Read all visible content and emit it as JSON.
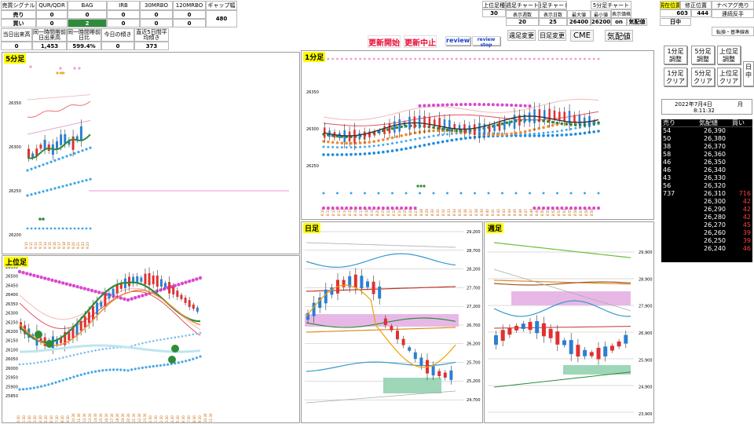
{
  "signals": {
    "headers": [
      "売買シグナル",
      "QUR/QDR",
      "BAG",
      "IRB",
      "30MRBO",
      "120MRBO",
      "ギャップ幅"
    ],
    "row_sell": {
      "label": "売り",
      "values": [
        "0",
        "0",
        "0",
        "0",
        "0"
      ]
    },
    "row_buy": {
      "label": "買い",
      "values": [
        "0",
        "2",
        "0",
        "0",
        "0"
      ]
    },
    "gap_value": "480"
  },
  "volume_stats": {
    "headers": [
      "当日出来高",
      "同一時間帯前日出来高",
      "同一時間帯前日比",
      "今日の傾き",
      "直近5日間平均傾き"
    ],
    "values": [
      "0",
      "1,453",
      "599.4%",
      "0",
      "373"
    ]
  },
  "controls": {
    "update_start": "更新開始",
    "update_stop": "更新中止",
    "review": "review",
    "review_stop": "review stop",
    "period_change": "週足変更",
    "daily_change": "日足変更",
    "cme": "CME",
    "kehai": "気配値"
  },
  "settings": {
    "h1": [
      "上位足種",
      "週足チャート",
      "日足チャート"
    ],
    "v1": [
      "30",
      "20",
      "25"
    ],
    "h2": [
      "表示週数",
      "表示日数",
      "最大値",
      "最小値"
    ],
    "v2": [
      "26400",
      "26200",
      "on"
    ],
    "h3": [
      "5分足チャート",
      "表示価格"
    ],
    "v3": [
      "気配値"
    ],
    "h4": [
      "現在位置",
      "修正位置",
      "ナベアグ売り"
    ],
    "v4": [
      "603",
      "444"
    ],
    "mode": "日中",
    "links": [
      "連続反手",
      "転換・基準線表"
    ]
  },
  "side_buttons": {
    "b1": "1分足調整",
    "b2": "5分足調整",
    "b3": "上位足調整",
    "b4": "1分足クリア",
    "b5": "5分足クリア",
    "b6": "上位足クリア",
    "b7": "日中"
  },
  "datetime": {
    "date": "2022年7月4日",
    "month": "月",
    "time": "8:11:32"
  },
  "board": {
    "headers": [
      "売り",
      "気配値",
      "買い"
    ],
    "rows": [
      [
        "54",
        "26,390",
        ""
      ],
      [
        "50",
        "26,380",
        ""
      ],
      [
        "38",
        "26,370",
        ""
      ],
      [
        "58",
        "26,360",
        ""
      ],
      [
        "46",
        "26,350",
        ""
      ],
      [
        "46",
        "26,340",
        ""
      ],
      [
        "43",
        "26,330",
        ""
      ],
      [
        "56",
        "26,320",
        ""
      ],
      [
        "737",
        "26,310",
        "716"
      ],
      [
        "",
        "26,300",
        "42"
      ],
      [
        "",
        "26,290",
        "42"
      ],
      [
        "",
        "26,280",
        "42"
      ],
      [
        "",
        "26,270",
        "45"
      ],
      [
        "",
        "26,260",
        "39"
      ],
      [
        "",
        "26,250",
        "39"
      ],
      [
        "",
        "26,240",
        "46"
      ]
    ]
  },
  "charts": {
    "five_min": {
      "title": "5分足",
      "yticks": [
        "26350",
        "26300",
        "26250",
        "26200"
      ]
    },
    "one_min": {
      "title": "1分足",
      "yticks": [
        "26350",
        "26300",
        "26250"
      ]
    },
    "upper": {
      "title": "上位足",
      "yticks": [
        "26550",
        "26500",
        "26450",
        "26400",
        "26350",
        "26300",
        "26250",
        "26200",
        "26150",
        "26100",
        "26050",
        "26000",
        "25950",
        "25900",
        "25850"
      ]
    },
    "daily": {
      "title": "日足",
      "yticks": [
        "29,200",
        "28,700",
        "28,200",
        "27,700",
        "27,200",
        "26,700",
        "26,200",
        "25,700",
        "25,200",
        "24,700"
      ]
    },
    "weekly": {
      "title": "週足",
      "yticks": [
        "29,900",
        "28,900",
        "27,900",
        "26,900",
        "25,900",
        "24,900",
        "23,900"
      ]
    }
  },
  "colors": {
    "green": "#2e8b3a",
    "red": "#e8103a",
    "blue": "#1a3fd0",
    "yellow": "#ffff00"
  }
}
